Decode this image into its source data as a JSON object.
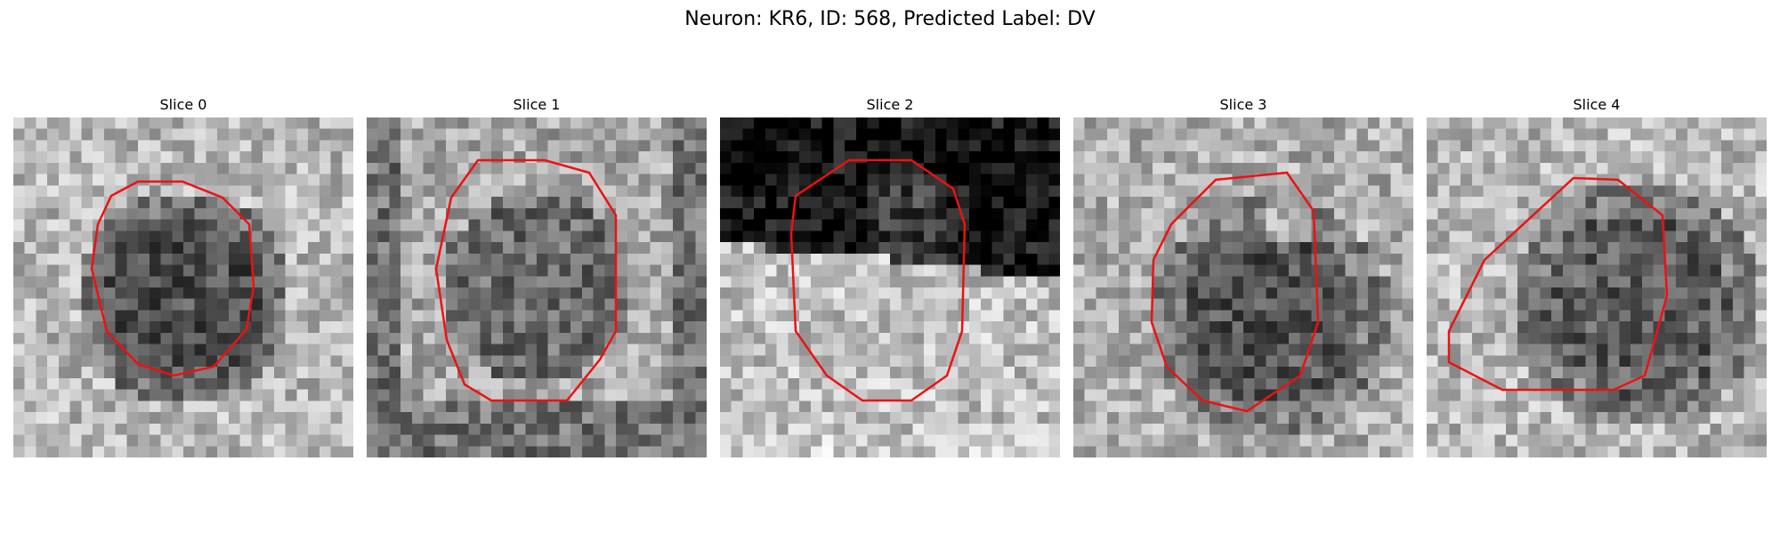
{
  "figure": {
    "title": "Neuron: KR6, ID: 568, Predicted Label: DV",
    "outline_color": "#ee1111",
    "colormap": "grayscale",
    "panels": [
      {
        "title": "Slice 0",
        "pattern": "dark cell body centered on light textured background"
      },
      {
        "title": "Slice 1",
        "pattern": "large gray cell body with darker surroundings"
      },
      {
        "title": "Slice 2",
        "pattern": "black upper region over light lower region"
      },
      {
        "title": "Slice 3",
        "pattern": "dark cell body with bright patches"
      },
      {
        "title": "Slice 4",
        "pattern": "dark cell body, lower right"
      }
    ]
  }
}
